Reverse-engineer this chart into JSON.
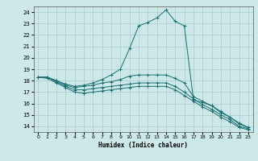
{
  "xlabel": "Humidex (Indice chaleur)",
  "background_color": "#cce8e8",
  "grid_color": "#aacccc",
  "line_color": "#1a7070",
  "xlim": [
    -0.5,
    23.5
  ],
  "ylim": [
    13.5,
    24.5
  ],
  "yticks": [
    14,
    15,
    16,
    17,
    18,
    19,
    20,
    21,
    22,
    23,
    24
  ],
  "xticks": [
    0,
    1,
    2,
    3,
    4,
    5,
    6,
    7,
    8,
    9,
    10,
    11,
    12,
    13,
    14,
    15,
    16,
    17,
    18,
    19,
    20,
    21,
    22,
    23
  ],
  "curves": [
    {
      "x": [
        0,
        1,
        2,
        3,
        4,
        5,
        6,
        7,
        8,
        9,
        10,
        11,
        12,
        13,
        14,
        15,
        16,
        17,
        18,
        19,
        20,
        21,
        22,
        23
      ],
      "y": [
        18.3,
        18.3,
        18.0,
        17.7,
        17.5,
        17.6,
        17.8,
        18.1,
        18.5,
        19.0,
        20.8,
        22.8,
        23.1,
        23.5,
        24.2,
        23.2,
        22.8,
        16.3,
        16.1,
        15.8,
        15.2,
        14.8,
        14.2,
        13.9
      ]
    },
    {
      "x": [
        0,
        1,
        2,
        3,
        4,
        5,
        6,
        7,
        8,
        9,
        10,
        11,
        12,
        13,
        14,
        15,
        16,
        17,
        18,
        19,
        20,
        21,
        22,
        23
      ],
      "y": [
        18.3,
        18.3,
        18.0,
        17.6,
        17.4,
        17.5,
        17.6,
        17.8,
        17.9,
        18.1,
        18.4,
        18.5,
        18.5,
        18.5,
        18.5,
        18.2,
        17.8,
        16.6,
        16.2,
        15.8,
        15.3,
        14.8,
        14.3,
        13.9
      ]
    },
    {
      "x": [
        0,
        1,
        2,
        3,
        4,
        5,
        6,
        7,
        8,
        9,
        10,
        11,
        12,
        13,
        14,
        15,
        16,
        17,
        18,
        19,
        20,
        21,
        22,
        23
      ],
      "y": [
        18.3,
        18.3,
        17.9,
        17.5,
        17.2,
        17.2,
        17.3,
        17.4,
        17.5,
        17.6,
        17.7,
        17.8,
        17.8,
        17.8,
        17.8,
        17.5,
        17.0,
        16.4,
        15.9,
        15.5,
        15.0,
        14.6,
        14.0,
        13.8
      ]
    },
    {
      "x": [
        0,
        1,
        2,
        3,
        4,
        5,
        6,
        7,
        8,
        9,
        10,
        11,
        12,
        13,
        14,
        15,
        16,
        17,
        18,
        19,
        20,
        21,
        22,
        23
      ],
      "y": [
        18.3,
        18.2,
        17.8,
        17.4,
        17.0,
        16.9,
        17.0,
        17.1,
        17.2,
        17.3,
        17.4,
        17.5,
        17.5,
        17.5,
        17.5,
        17.2,
        16.7,
        16.2,
        15.7,
        15.3,
        14.8,
        14.4,
        13.9,
        13.7
      ]
    }
  ]
}
